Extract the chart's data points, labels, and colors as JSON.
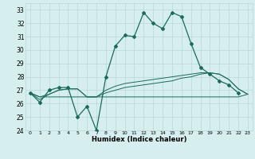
{
  "xlabel": "Humidex (Indice chaleur)",
  "x_values": [
    0,
    1,
    2,
    3,
    4,
    5,
    6,
    7,
    8,
    9,
    10,
    11,
    12,
    13,
    14,
    15,
    16,
    17,
    18,
    19,
    20,
    21,
    22,
    23
  ],
  "line1": [
    26.8,
    26.1,
    27.0,
    27.2,
    27.2,
    25.0,
    25.8,
    24.0,
    28.0,
    30.3,
    31.1,
    31.0,
    32.8,
    32.0,
    31.6,
    32.8,
    32.5,
    30.5,
    28.7,
    28.2,
    27.7,
    27.4,
    26.8,
    null
  ],
  "line2": [
    26.8,
    26.3,
    26.7,
    27.0,
    27.1,
    27.1,
    26.5,
    26.5,
    26.8,
    27.0,
    27.2,
    27.3,
    27.4,
    27.5,
    27.6,
    27.7,
    27.9,
    28.0,
    28.2,
    28.3,
    28.2,
    27.8,
    27.1,
    26.7
  ],
  "line3": [
    26.8,
    26.5,
    26.7,
    27.0,
    27.1,
    27.1,
    26.5,
    26.5,
    27.0,
    27.3,
    27.5,
    27.6,
    27.7,
    27.8,
    27.9,
    28.0,
    28.1,
    28.2,
    28.3,
    28.3,
    28.2,
    27.8,
    27.1,
    26.7
  ],
  "line4": [
    26.8,
    26.5,
    26.5,
    26.5,
    26.5,
    26.5,
    26.5,
    26.5,
    26.5,
    26.5,
    26.5,
    26.5,
    26.5,
    26.5,
    26.5,
    26.5,
    26.5,
    26.5,
    26.5,
    26.5,
    26.5,
    26.5,
    26.5,
    26.7
  ],
  "bg_color": "#d6eeee",
  "grid_color": "#b8d8d8",
  "line_color": "#1a6b5a",
  "ylim": [
    24,
    33.5
  ],
  "yticks": [
    24,
    25,
    26,
    27,
    28,
    29,
    30,
    31,
    32,
    33
  ],
  "xticks": [
    0,
    1,
    2,
    3,
    4,
    5,
    6,
    7,
    8,
    9,
    10,
    11,
    12,
    13,
    14,
    15,
    16,
    17,
    18,
    19,
    20,
    21,
    22,
    23
  ],
  "xlim": [
    -0.5,
    23.5
  ]
}
